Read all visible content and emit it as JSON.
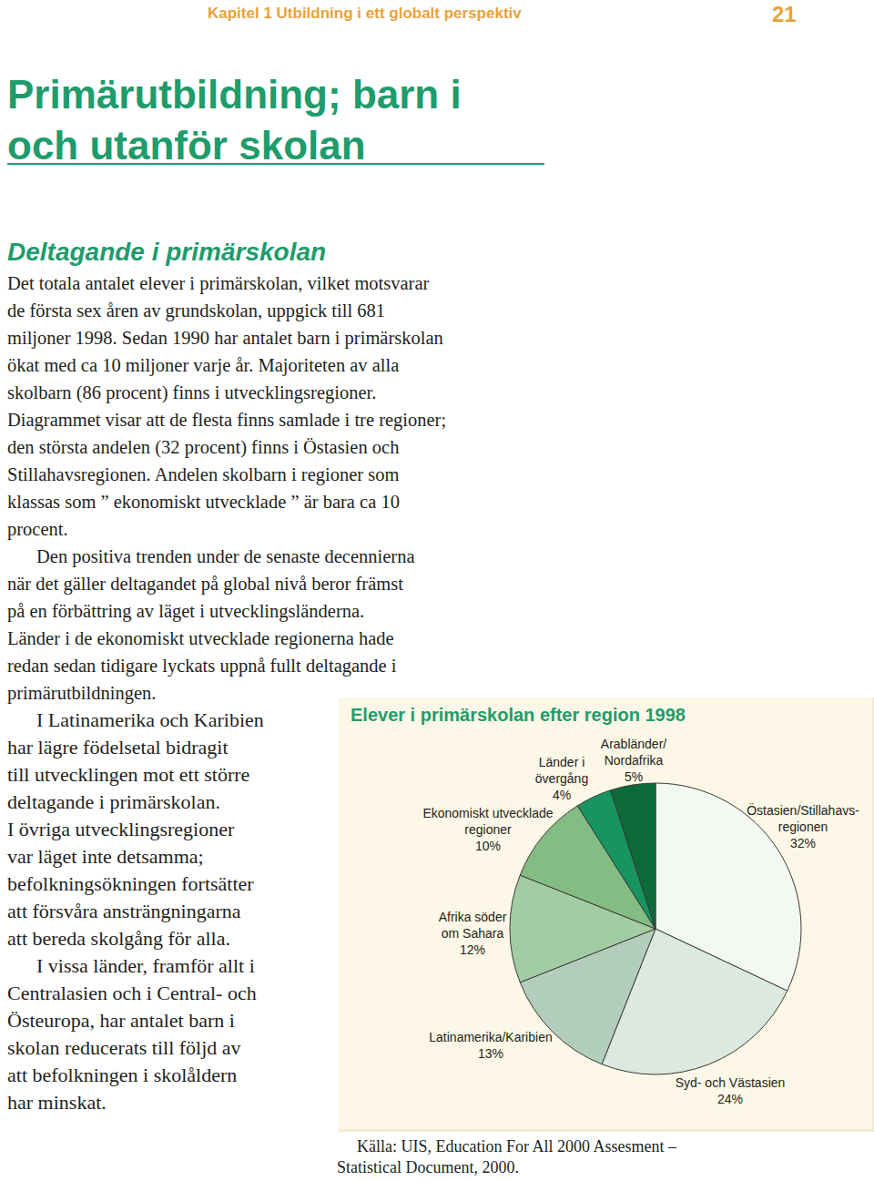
{
  "header": {
    "chapter": "Kapitel 1 Utbildning i ett globalt perspektiv",
    "page_number": 21
  },
  "title": [
    "Primärutbildning; barn i",
    "och utanför skolan"
  ],
  "subtitle": "Deltagande i primärskolan",
  "paragraphs": [
    [
      "Det totala antalet elever i primärskolan, vilket motsvarar",
      "de första sex åren av grundskolan, uppgick till 681",
      "miljoner 1998. Sedan 1990 har antalet barn i primärskolan",
      "ökat med ca 10 miljoner varje år. Majoriteten av alla",
      "skolbarn (86 procent) finns i utvecklingsregioner.",
      "Diagrammet visar att de flesta finns samlade i tre regioner;",
      "den största andelen (32 procent) finns i Östasien och",
      "Stillahavsregionen. Andelen skolbarn i regioner som",
      "klassas som ” ekonomiskt utvecklade ” är bara ca 10",
      "procent."
    ],
    [
      "Den positiva trenden under de senaste decennierna",
      "när det gäller deltagandet på global nivå beror främst",
      "på en förbättring av läget i utvecklingsländerna.",
      "Länder i de ekonomiskt utvecklade regionerna hade",
      "redan sedan tidigare lyckats uppnå fullt deltagande i",
      "primärutbildningen."
    ],
    [
      "I Latinamerika och Karibien",
      "har lägre födelsetal bidragit",
      "till utvecklingen mot ett större",
      "deltagande i primärskolan.",
      "I övriga utvecklingsregioner",
      "var läget inte detsamma;",
      "befolkningsökningen fortsätter",
      "att försvåra ansträngningarna",
      "att bereda skolgång för alla."
    ],
    [
      "I vissa länder, framför allt i",
      "Centralasien och i Central- och",
      "Östeuropa, har antalet barn i",
      "skolan reducerats till följd av",
      "att befolkningen i skolåldern",
      "har minskat."
    ]
  ],
  "chart_data": {
    "type": "pie",
    "title": "Elever i primärskolan efter region 1998",
    "categories": [
      "Östasien/Stillahavs-\nregionen",
      "Syd- och Västasien",
      "Latinamerika/Karibien",
      "Afrika söder\nom Sahara",
      "Ekonomiskt utvecklade\nregioner",
      "Länder i\növergång",
      "Arabländer/\nNordafrika"
    ],
    "values": [
      32,
      24,
      13,
      12,
      10,
      4,
      5
    ],
    "value_labels": [
      "32%",
      "24%",
      "13%",
      "12%",
      "10%",
      "4%",
      "5%"
    ],
    "colors": [
      "#f4f8f2",
      "#dce9df",
      "#b3cdbd",
      "#a2cda3",
      "#84bd84",
      "#17945f",
      "#0c6a3b"
    ],
    "data_labels": true
  },
  "source": [
    "Källa: UIS, Education For All 2000 Assesment –",
    "Statistical Document, 2000."
  ]
}
